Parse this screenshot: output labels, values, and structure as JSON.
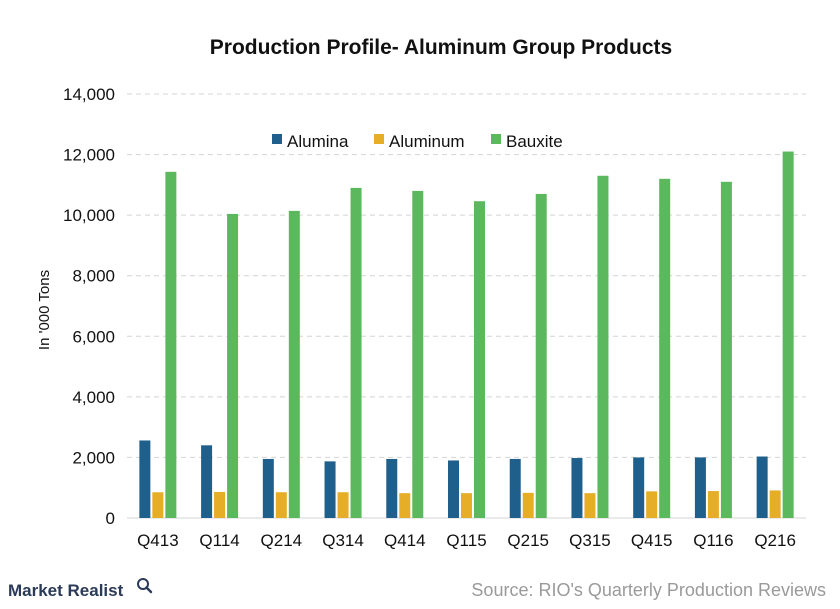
{
  "brand": {
    "name": "Market Realist",
    "icon": "magnifier-icon"
  },
  "source": "Source: RIO's Quarterly Production Reviews",
  "colors": {
    "Alumina": "#1f5f8b",
    "Aluminum": "#e6ad26",
    "Bauxite": "#5cb85c",
    "grid": "#d4d4d4",
    "brand": "#2b3a57"
  },
  "chart_data": {
    "type": "bar",
    "title": "Production Profile- Aluminum Group Products",
    "xlabel": "",
    "ylabel": "In '000 Tons",
    "ylim": [
      0,
      14000
    ],
    "yticks": [
      "0",
      "2,000",
      "4,000",
      "6,000",
      "8,000",
      "10,000",
      "12,000",
      "14,000"
    ],
    "grid": true,
    "legend_position": "top-center",
    "categories": [
      "Q413",
      "Q114",
      "Q214",
      "Q314",
      "Q414",
      "Q115",
      "Q215",
      "Q315",
      "Q415",
      "Q116",
      "Q216"
    ],
    "series": [
      {
        "name": "Alumina",
        "values": [
          2560,
          2400,
          1950,
          1870,
          1950,
          1900,
          1950,
          1980,
          2000,
          2000,
          2030
        ]
      },
      {
        "name": "Aluminum",
        "values": [
          850,
          860,
          850,
          850,
          820,
          820,
          830,
          820,
          880,
          890,
          910
        ]
      },
      {
        "name": "Bauxite",
        "values": [
          11430,
          10040,
          10140,
          10900,
          10800,
          10460,
          10700,
          11300,
          11200,
          11100,
          12100
        ]
      }
    ]
  }
}
